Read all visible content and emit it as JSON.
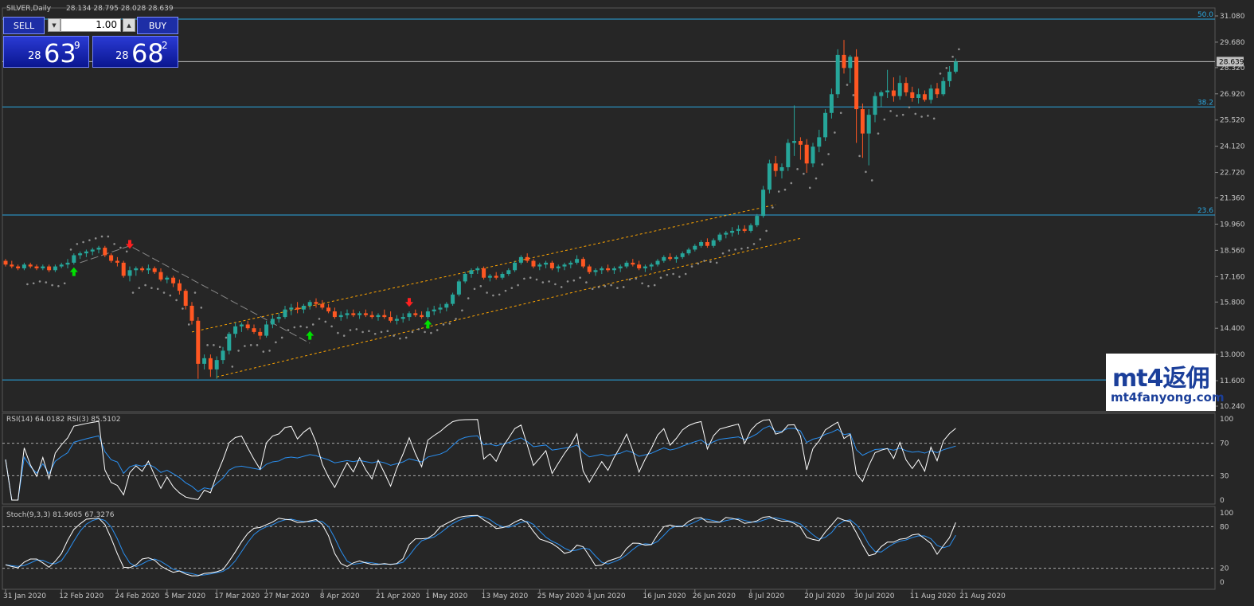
{
  "header": {
    "symbol": "SILVER,Daily",
    "ohlc": "28.134 28.795 28.028 28.639"
  },
  "trade_panel": {
    "sell_label": "SELL",
    "buy_label": "BUY",
    "lot": "1.00",
    "sell_small": "28",
    "sell_big": "63",
    "sell_sup": "9",
    "buy_small": "28",
    "buy_big": "68",
    "buy_sup": "2"
  },
  "logo": {
    "main": "mt4返佣",
    "sub": "mt4fanyong.com"
  },
  "colors": {
    "bg": "#262626",
    "bull": "#26a69a",
    "bear": "#ff5722",
    "fib": "#2aa7e0",
    "grid_text": "#c8c8c8",
    "channel": "#ffa500",
    "sar": "#8c8c8c",
    "signal_up": "#00e000",
    "signal_down": "#ff2020"
  },
  "chart_data": [
    {
      "type": "candlestick",
      "title": "SILVER,Daily",
      "ylim": [
        10.24,
        31.08
      ],
      "y_ticks": [
        "31.080",
        "29.680",
        "28.320",
        "26.920",
        "25.520",
        "24.120",
        "22.720",
        "21.360",
        "19.960",
        "18.560",
        "17.160",
        "15.800",
        "14.400",
        "13.000",
        "11.600",
        "10.240"
      ],
      "current_price": "28.639",
      "fib_levels": [
        {
          "label": "50.0",
          "price": 30.91
        },
        {
          "label": "38.2",
          "price": 26.22
        },
        {
          "label": "23.6",
          "price": 20.45
        },
        {
          "label": "",
          "price": 11.64
        }
      ],
      "x_ticks": [
        "31 Jan 2020",
        "12 Feb 2020",
        "24 Feb 2020",
        "5 Mar 2020",
        "17 Mar 2020",
        "27 Mar 2020",
        "8 Apr 2020",
        "21 Apr 2020",
        "1 May 2020",
        "13 May 2020",
        "25 May 2020",
        "4 Jun 2020",
        "16 Jun 2020",
        "26 Jun 2020",
        "8 Jul 2020",
        "20 Jul 2020",
        "30 Jul 2020",
        "11 Aug 2020",
        "21 Aug 2020"
      ],
      "x_tick_bar_index": [
        0,
        9,
        18,
        26,
        34,
        42,
        51,
        60,
        68,
        77,
        86,
        94,
        103,
        111,
        120,
        129,
        137,
        146,
        154
      ],
      "ohlc": [
        [
          18.0,
          18.1,
          17.7,
          17.8
        ],
        [
          17.8,
          18.0,
          17.6,
          17.7
        ],
        [
          17.7,
          17.8,
          17.5,
          17.6
        ],
        [
          17.6,
          17.9,
          17.5,
          17.8
        ],
        [
          17.8,
          17.9,
          17.6,
          17.7
        ],
        [
          17.7,
          17.8,
          17.5,
          17.6
        ],
        [
          17.6,
          17.8,
          17.5,
          17.7
        ],
        [
          17.7,
          17.8,
          17.4,
          17.5
        ],
        [
          17.5,
          17.8,
          17.4,
          17.7
        ],
        [
          17.7,
          17.9,
          17.6,
          17.8
        ],
        [
          17.8,
          18.1,
          17.6,
          17.9
        ],
        [
          17.9,
          18.4,
          17.8,
          18.3
        ],
        [
          18.3,
          18.5,
          18.1,
          18.4
        ],
        [
          18.4,
          18.6,
          18.2,
          18.5
        ],
        [
          18.5,
          18.7,
          18.3,
          18.6
        ],
        [
          18.6,
          18.8,
          18.4,
          18.7
        ],
        [
          18.7,
          18.8,
          18.2,
          18.3
        ],
        [
          18.3,
          18.4,
          17.9,
          18.0
        ],
        [
          18.0,
          18.2,
          17.7,
          17.9
        ],
        [
          17.9,
          18.0,
          17.1,
          17.2
        ],
        [
          17.2,
          17.7,
          16.9,
          17.5
        ],
        [
          17.5,
          17.7,
          17.2,
          17.6
        ],
        [
          17.6,
          17.7,
          17.4,
          17.5
        ],
        [
          17.5,
          17.8,
          17.3,
          17.6
        ],
        [
          17.6,
          17.7,
          17.3,
          17.4
        ],
        [
          17.4,
          17.6,
          16.9,
          17.0
        ],
        [
          17.0,
          17.2,
          16.8,
          17.1
        ],
        [
          17.1,
          17.2,
          16.6,
          16.8
        ],
        [
          16.8,
          17.0,
          16.2,
          16.4
        ],
        [
          16.4,
          16.5,
          15.4,
          15.6
        ],
        [
          15.6,
          15.8,
          14.6,
          14.8
        ],
        [
          14.8,
          15.0,
          11.7,
          12.5
        ],
        [
          12.5,
          13.0,
          12.2,
          12.8
        ],
        [
          12.8,
          13.0,
          11.8,
          12.2
        ],
        [
          12.2,
          12.9,
          11.7,
          12.7
        ],
        [
          12.7,
          13.4,
          12.5,
          13.2
        ],
        [
          13.2,
          14.2,
          13.0,
          14.1
        ],
        [
          14.1,
          14.7,
          13.9,
          14.5
        ],
        [
          14.5,
          14.7,
          14.2,
          14.6
        ],
        [
          14.6,
          14.8,
          14.3,
          14.4
        ],
        [
          14.4,
          14.6,
          14.1,
          14.2
        ],
        [
          14.2,
          14.4,
          13.8,
          14.0
        ],
        [
          14.0,
          14.8,
          13.9,
          14.6
        ],
        [
          14.6,
          15.1,
          14.4,
          14.9
        ],
        [
          14.9,
          15.2,
          14.7,
          15.0
        ],
        [
          15.0,
          15.6,
          14.9,
          15.4
        ],
        [
          15.4,
          15.7,
          15.1,
          15.5
        ],
        [
          15.5,
          15.8,
          15.2,
          15.4
        ],
        [
          15.4,
          15.7,
          15.2,
          15.6
        ],
        [
          15.6,
          15.9,
          15.4,
          15.8
        ],
        [
          15.8,
          16.0,
          15.5,
          15.7
        ],
        [
          15.7,
          15.9,
          15.4,
          15.5
        ],
        [
          15.5,
          15.7,
          15.2,
          15.3
        ],
        [
          15.3,
          15.5,
          14.9,
          15.0
        ],
        [
          15.0,
          15.3,
          14.8,
          15.1
        ],
        [
          15.1,
          15.4,
          14.9,
          15.2
        ],
        [
          15.2,
          15.4,
          15.0,
          15.1
        ],
        [
          15.1,
          15.3,
          14.9,
          15.2
        ],
        [
          15.2,
          15.4,
          15.0,
          15.1
        ],
        [
          15.1,
          15.3,
          14.9,
          15.0
        ],
        [
          15.0,
          15.2,
          14.8,
          15.1
        ],
        [
          15.1,
          15.4,
          14.9,
          15.0
        ],
        [
          15.0,
          15.3,
          14.7,
          14.8
        ],
        [
          14.8,
          15.1,
          14.6,
          14.9
        ],
        [
          14.9,
          15.2,
          14.7,
          15.0
        ],
        [
          15.0,
          15.3,
          14.8,
          15.2
        ],
        [
          15.2,
          15.4,
          15.0,
          15.1
        ],
        [
          15.1,
          15.3,
          14.9,
          15.0
        ],
        [
          15.0,
          15.5,
          14.9,
          15.3
        ],
        [
          15.3,
          15.6,
          15.1,
          15.4
        ],
        [
          15.4,
          15.7,
          15.2,
          15.5
        ],
        [
          15.5,
          15.8,
          15.3,
          15.7
        ],
        [
          15.7,
          16.3,
          15.6,
          16.2
        ],
        [
          16.2,
          17.0,
          16.1,
          16.9
        ],
        [
          16.9,
          17.4,
          16.8,
          17.3
        ],
        [
          17.3,
          17.6,
          17.1,
          17.5
        ],
        [
          17.5,
          17.7,
          17.3,
          17.6
        ],
        [
          17.6,
          17.7,
          17.0,
          17.1
        ],
        [
          17.1,
          17.3,
          16.9,
          17.2
        ],
        [
          17.2,
          17.4,
          17.0,
          17.1
        ],
        [
          17.1,
          17.4,
          17.0,
          17.3
        ],
        [
          17.3,
          17.6,
          17.2,
          17.5
        ],
        [
          17.5,
          18.0,
          17.4,
          17.9
        ],
        [
          17.9,
          18.3,
          17.8,
          18.2
        ],
        [
          18.2,
          18.4,
          17.9,
          18.0
        ],
        [
          18.0,
          18.1,
          17.6,
          17.7
        ],
        [
          17.7,
          17.9,
          17.5,
          17.8
        ],
        [
          17.8,
          18.0,
          17.6,
          17.9
        ],
        [
          17.9,
          18.0,
          17.5,
          17.6
        ],
        [
          17.6,
          17.8,
          17.4,
          17.7
        ],
        [
          17.7,
          17.9,
          17.5,
          17.8
        ],
        [
          17.8,
          18.0,
          17.6,
          17.9
        ],
        [
          17.9,
          18.3,
          17.8,
          18.1
        ],
        [
          18.1,
          18.2,
          17.6,
          17.7
        ],
        [
          17.7,
          17.8,
          17.3,
          17.4
        ],
        [
          17.4,
          17.6,
          17.2,
          17.5
        ],
        [
          17.5,
          17.7,
          17.3,
          17.6
        ],
        [
          17.6,
          17.8,
          17.4,
          17.5
        ],
        [
          17.5,
          17.7,
          17.3,
          17.6
        ],
        [
          17.6,
          17.8,
          17.4,
          17.7
        ],
        [
          17.7,
          18.0,
          17.6,
          17.9
        ],
        [
          17.9,
          18.1,
          17.7,
          17.8
        ],
        [
          17.8,
          18.0,
          17.5,
          17.6
        ],
        [
          17.6,
          17.8,
          17.4,
          17.7
        ],
        [
          17.7,
          17.9,
          17.5,
          17.8
        ],
        [
          17.8,
          18.1,
          17.7,
          18.0
        ],
        [
          18.0,
          18.3,
          17.9,
          18.2
        ],
        [
          18.2,
          18.4,
          18.0,
          18.1
        ],
        [
          18.1,
          18.3,
          17.9,
          18.2
        ],
        [
          18.2,
          18.5,
          18.1,
          18.4
        ],
        [
          18.4,
          18.7,
          18.3,
          18.6
        ],
        [
          18.6,
          18.9,
          18.5,
          18.8
        ],
        [
          18.8,
          19.1,
          18.7,
          19.0
        ],
        [
          19.0,
          19.2,
          18.7,
          18.8
        ],
        [
          18.8,
          19.2,
          18.7,
          19.1
        ],
        [
          19.1,
          19.5,
          19.0,
          19.4
        ],
        [
          19.4,
          19.6,
          19.2,
          19.5
        ],
        [
          19.5,
          19.8,
          19.3,
          19.6
        ],
        [
          19.6,
          19.9,
          19.4,
          19.7
        ],
        [
          19.7,
          19.9,
          19.5,
          19.6
        ],
        [
          19.6,
          20.0,
          19.5,
          19.9
        ],
        [
          19.9,
          20.5,
          19.8,
          20.4
        ],
        [
          20.4,
          22.0,
          20.3,
          21.8
        ],
        [
          21.8,
          23.4,
          21.6,
          23.2
        ],
        [
          23.2,
          23.6,
          22.5,
          22.8
        ],
        [
          22.8,
          23.2,
          22.4,
          23.0
        ],
        [
          23.0,
          24.5,
          22.8,
          24.3
        ],
        [
          24.3,
          26.3,
          23.6,
          24.4
        ],
        [
          24.4,
          24.6,
          23.4,
          24.2
        ],
        [
          24.2,
          24.5,
          22.7,
          23.2
        ],
        [
          23.2,
          24.3,
          23.0,
          24.1
        ],
        [
          24.1,
          25.0,
          23.8,
          24.6
        ],
        [
          24.6,
          26.1,
          24.4,
          25.9
        ],
        [
          25.9,
          27.2,
          25.6,
          26.9
        ],
        [
          26.9,
          29.3,
          26.7,
          29.0
        ],
        [
          29.0,
          29.8,
          28.0,
          28.3
        ],
        [
          28.3,
          29.0,
          27.5,
          28.9
        ],
        [
          28.9,
          29.3,
          24.3,
          26.1
        ],
        [
          26.1,
          26.4,
          23.5,
          24.8
        ],
        [
          24.8,
          26.1,
          23.1,
          25.8
        ],
        [
          25.8,
          27.0,
          25.4,
          26.8
        ],
        [
          26.8,
          27.1,
          26.2,
          27.0
        ],
        [
          27.0,
          28.2,
          26.7,
          27.1
        ],
        [
          27.1,
          27.8,
          26.5,
          26.8
        ],
        [
          26.8,
          27.9,
          26.6,
          27.5
        ],
        [
          27.5,
          27.8,
          26.8,
          27.0
        ],
        [
          27.0,
          27.3,
          26.5,
          26.7
        ],
        [
          26.7,
          27.2,
          26.4,
          26.9
        ],
        [
          26.9,
          27.1,
          26.5,
          26.6
        ],
        [
          26.6,
          27.4,
          26.4,
          27.2
        ],
        [
          27.2,
          27.5,
          26.7,
          26.9
        ],
        [
          26.9,
          27.8,
          26.8,
          27.6
        ],
        [
          27.6,
          28.4,
          27.3,
          28.1
        ],
        [
          28.1,
          28.8,
          28.0,
          28.639
        ]
      ]
    },
    {
      "type": "line",
      "title": "RSI(14) 64.0182  RSI(3) 85.5102",
      "ylim": [
        0,
        100
      ],
      "levels": [
        70,
        30
      ],
      "y_ticks": [
        "100",
        "70",
        "30",
        "0"
      ],
      "series": [
        {
          "name": "RSI(14)",
          "last": 64.0182
        },
        {
          "name": "RSI(3)",
          "last": 85.5102
        }
      ]
    },
    {
      "type": "line",
      "title": "Stoch(9,3,3) 81.9605 67.3276",
      "ylim": [
        0,
        100
      ],
      "levels": [
        80,
        20
      ],
      "y_ticks": [
        "100",
        "80",
        "20",
        "0"
      ],
      "series": [
        {
          "name": "%K",
          "last": 81.9605
        },
        {
          "name": "%D",
          "last": 67.3276
        }
      ]
    }
  ]
}
